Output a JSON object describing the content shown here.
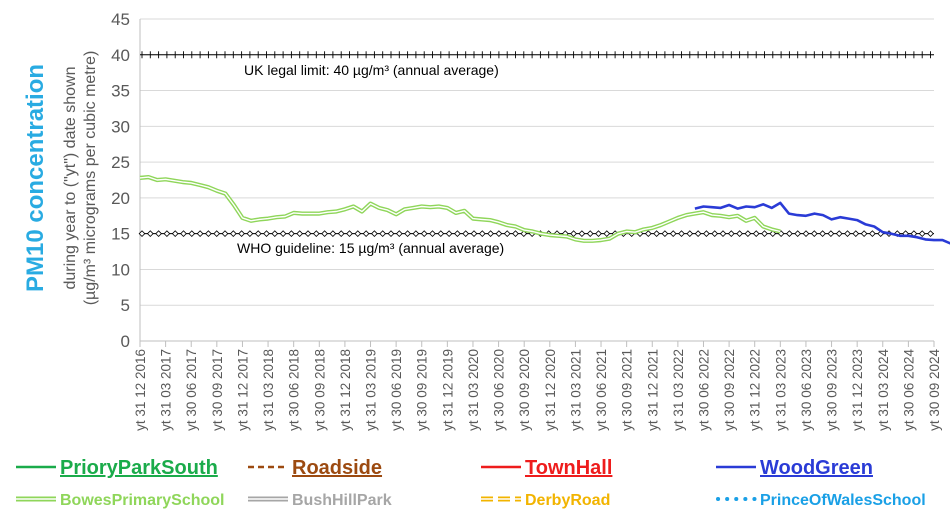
{
  "chart_data": {
    "type": "line",
    "ylabel_main": "PM10 concentration",
    "ylabel_sub1": "during year to (\"yt\") date shown",
    "ylabel_sub2": "(µg/m³ micrograms per cubic metre)",
    "ylim": [
      0,
      45
    ],
    "yticks": [
      "0",
      "5",
      "10",
      "15",
      "20",
      "25",
      "30",
      "35",
      "40",
      "45"
    ],
    "x_labels": [
      "yt 31 12 2016",
      "yt 31 03 2017",
      "yt 30 06 2017",
      "yt 30 09 2017",
      "yt 31 12 2017",
      "yt 31 03 2018",
      "yt 30 06 2018",
      "yt 30 09 2018",
      "yt 31 12 2018",
      "yt 31 03 2019",
      "yt 30 06 2019",
      "yt 30 09 2019",
      "yt 31 12 2019",
      "yt 31 03 2020",
      "yt 30 06 2020",
      "yt 30 09 2020",
      "yt 31 12 2020",
      "yt 31 03 2021",
      "yt 30 06 2021",
      "yt 30 09 2021",
      "yt 31 12 2021",
      "yt 31 03 2022",
      "yt 30 06 2022",
      "yt 30 09 2022",
      "yt 31 12 2022",
      "yt 31 03 2023",
      "yt 30 06 2023",
      "yt 30 09 2023",
      "yt 31 12 2023",
      "yt 31 03 2024",
      "yt 30 06 2024",
      "yt 30 09 2024"
    ],
    "reference_lines": [
      {
        "value": 40,
        "label": "UK legal limit:  40 µg/m³ (annual average)"
      },
      {
        "value": 15,
        "label": "WHO guideline:  15 µg/m³ (annual average)"
      }
    ],
    "series": [
      {
        "name": "BowesPrimarySchool",
        "color": "#8fd65a",
        "x_start": 0,
        "x_step": 0.3333,
        "values": [
          22.8,
          22.9,
          22.5,
          22.6,
          22.4,
          22.2,
          22.1,
          21.8,
          21.5,
          21.0,
          20.6,
          19.0,
          17.2,
          16.8,
          17.0,
          17.1,
          17.3,
          17.4,
          17.9,
          17.8,
          17.8,
          17.8,
          18.0,
          18.1,
          18.4,
          18.8,
          18.1,
          19.2,
          18.6,
          18.3,
          17.7,
          18.4,
          18.6,
          18.8,
          18.7,
          18.8,
          18.6,
          17.9,
          18.2,
          17.1,
          17.0,
          16.9,
          16.6,
          16.2,
          16.0,
          15.5,
          15.3,
          15.0,
          14.8,
          14.7,
          14.6,
          14.2,
          14.0,
          14.0,
          14.1,
          14.3,
          15.0,
          15.3,
          15.2,
          15.6,
          15.8,
          16.2,
          16.7,
          17.2,
          17.6,
          17.8,
          18.0,
          17.6,
          17.5,
          17.3,
          17.5,
          16.8,
          17.2,
          16.0,
          15.6,
          15.3
        ]
      },
      {
        "name": "WoodGreen",
        "color": "#2a3bd6",
        "x_start": 21.6667,
        "x_step": 0.3333,
        "values": [
          18.5,
          18.8,
          18.7,
          18.6,
          19.0,
          18.5,
          18.8,
          18.7,
          19.1,
          18.6,
          19.3,
          17.8,
          17.6,
          17.5,
          17.8,
          17.6,
          17.0,
          17.3,
          17.1,
          16.9,
          16.3,
          16.0,
          15.2,
          15.0,
          14.7,
          14.7,
          14.5,
          14.2,
          14.1,
          14.1,
          13.6
        ]
      }
    ],
    "legend_row1": [
      {
        "name": "PrioryParkSouth",
        "color": "#1aab4a",
        "style": "solid"
      },
      {
        "name": "Roadside",
        "color": "#9c4a10",
        "style": "dashed"
      },
      {
        "name": "TownHall",
        "color": "#ee1c1c",
        "style": "solid"
      },
      {
        "name": "WoodGreen",
        "color": "#2a3bd6",
        "style": "solid"
      }
    ],
    "legend_row2": [
      {
        "name": "BowesPrimarySchool",
        "color": "#8fd65a",
        "style": "double"
      },
      {
        "name": "BushHillPark",
        "color": "#a6a6a6",
        "style": "double"
      },
      {
        "name": "DerbyRoad",
        "color": "#f2b400",
        "style": "dashdouble"
      },
      {
        "name": "PrinceOfWalesSchool",
        "color": "#1aa0e6",
        "style": "dotted"
      }
    ],
    "grid": true,
    "legend_position": "bottom"
  }
}
